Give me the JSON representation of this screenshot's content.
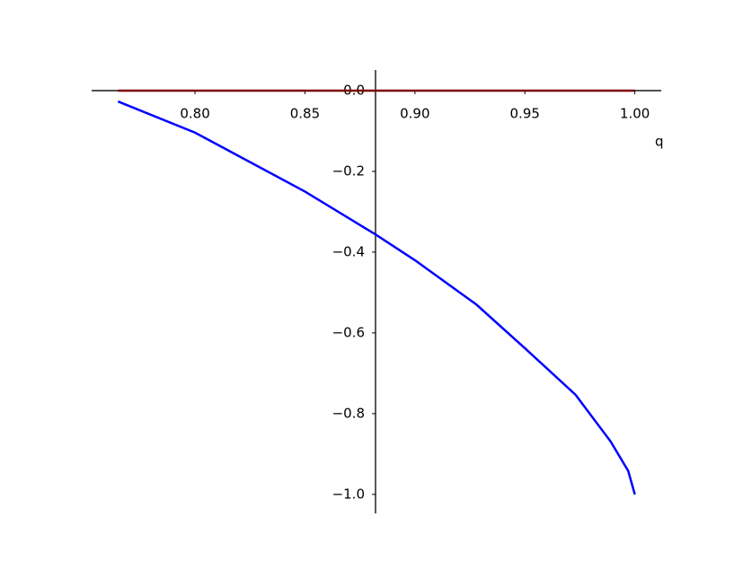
{
  "chart_data": {
    "type": "line",
    "xlabel": "q",
    "xlim": [
      0.753,
      1.012
    ],
    "ylim": [
      -1.047,
      0.051
    ],
    "xticks": [
      {
        "value": 0.8,
        "label": "0.80"
      },
      {
        "value": 0.85,
        "label": "0.85"
      },
      {
        "value": 0.9,
        "label": "0.90"
      },
      {
        "value": 0.95,
        "label": "0.95"
      },
      {
        "value": 1.0,
        "label": "1.00"
      }
    ],
    "yticks": [
      {
        "value": 0,
        "label": "0.0"
      },
      {
        "value": -0.2,
        "label": "−0.2"
      },
      {
        "value": -0.4,
        "label": "−0.4"
      },
      {
        "value": -0.6,
        "label": "−0.6"
      },
      {
        "value": -0.8,
        "label": "−0.8"
      },
      {
        "value": -1.0,
        "label": "−1.0"
      }
    ],
    "series": [
      {
        "color": "#0000ff",
        "x": [
          0.765,
          0.8,
          0.85,
          0.882,
          0.9,
          0.928,
          0.95,
          0.973,
          0.989,
          0.997,
          1.0
        ],
        "values": [
          -0.027,
          -0.104,
          -0.25,
          -0.356,
          -0.42,
          -0.53,
          -0.638,
          -0.753,
          -0.869,
          -0.942,
          -1.0
        ]
      },
      {
        "color": "#800000",
        "x": [
          0.765,
          1.0
        ],
        "values": [
          0,
          0
        ]
      }
    ]
  }
}
